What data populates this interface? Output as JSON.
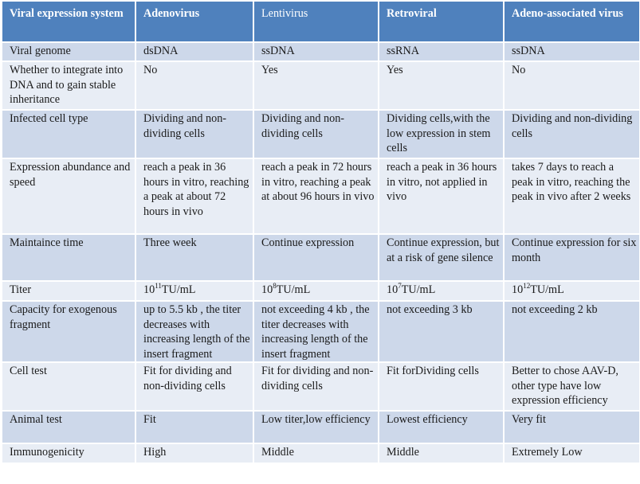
{
  "headers": [
    "Viral expression system",
    "Adenovirus",
    "Lentivirus",
    "Retroviral",
    "Adeno-associated virus"
  ],
  "rows": [
    {
      "attribute": "Viral genome",
      "adenovirus": "dsDNA",
      "lentivirus": "ssDNA",
      "retroviral": "ssRNA",
      "aav": "ssDNA"
    },
    {
      "attribute": "Whether to integrate into DNA and to gain stable inheritance",
      "adenovirus": "No",
      "lentivirus": "Yes",
      "retroviral": "Yes",
      "aav": "No"
    },
    {
      "attribute": "Infected cell type",
      "adenovirus": "Dividing and non-dividing cells",
      "lentivirus": "Dividing and non-dividing cells",
      "retroviral": "Dividing cells,with the low expression in stem cells",
      "aav": "Dividing and non-dividing cells"
    },
    {
      "attribute": "Expression abundance and speed",
      "adenovirus": "reach a peak in 36 hours in vitro, reaching a peak at about 72 hours in vivo",
      "lentivirus": " reach a peak in 72 hours in vitro, reaching a peak at about 96 hours in vivo",
      "retroviral": "reach a peak in 36 hours in vitro, not applied in vivo",
      "aav": "takes 7 days to  reach a peak  in vitro, reaching the peak  in vivo  after 2 weeks"
    },
    {
      "attribute": "Maintaince time",
      "adenovirus": "Three week",
      "lentivirus": "Continue expression",
      "retroviral": "Continue expression, but at a risk of gene silence",
      "aav": "Continue expression for six month"
    },
    {
      "attribute": "Titer",
      "adenovirus": {
        "base": "10",
        "exp": "11",
        "unit": "TU/mL"
      },
      "lentivirus": {
        "base": "10",
        "exp": "8",
        "unit": "TU/mL"
      },
      "retroviral": {
        "base": "10",
        "exp": "7",
        "unit": "TU/mL"
      },
      "aav": {
        "base": "10",
        "exp": "12",
        "unit": "TU/mL"
      }
    },
    {
      "attribute": "Capacity for exogenous fragment",
      "adenovirus": "up to 5.5 kb , the titer decreases with increasing length of the insert fragment",
      "lentivirus": "not exceeding 4 kb , the titer decreases with increasing length of the insert fragment",
      "retroviral": "not exceeding 3 kb",
      "aav": "not exceeding 2 kb"
    },
    {
      "attribute": "Cell test",
      "adenovirus": "Fit for dividing and non-dividing cells",
      "lentivirus": "Fit for dividing and non-dividing cells",
      "retroviral": "Fit forDividing cells",
      "aav": "Better to chose AAV-D, other type have low expression efficiency"
    },
    {
      "attribute": "Animal test",
      "adenovirus": "Fit",
      "lentivirus": "Low titer,low efficiency",
      "retroviral": "Lowest efficiency",
      "aav": "Very fit"
    },
    {
      "attribute": "Immunogenicity",
      "adenovirus": "High",
      "lentivirus": "Middle",
      "retroviral": "Middle",
      "aav": "Extremely Low"
    }
  ],
  "colors": {
    "header_bg": "#4f81bd",
    "row_dark": "#cdd8ea",
    "row_light": "#e8edf5",
    "header_text": "#ffffff",
    "body_text": "#1a1a1a"
  }
}
